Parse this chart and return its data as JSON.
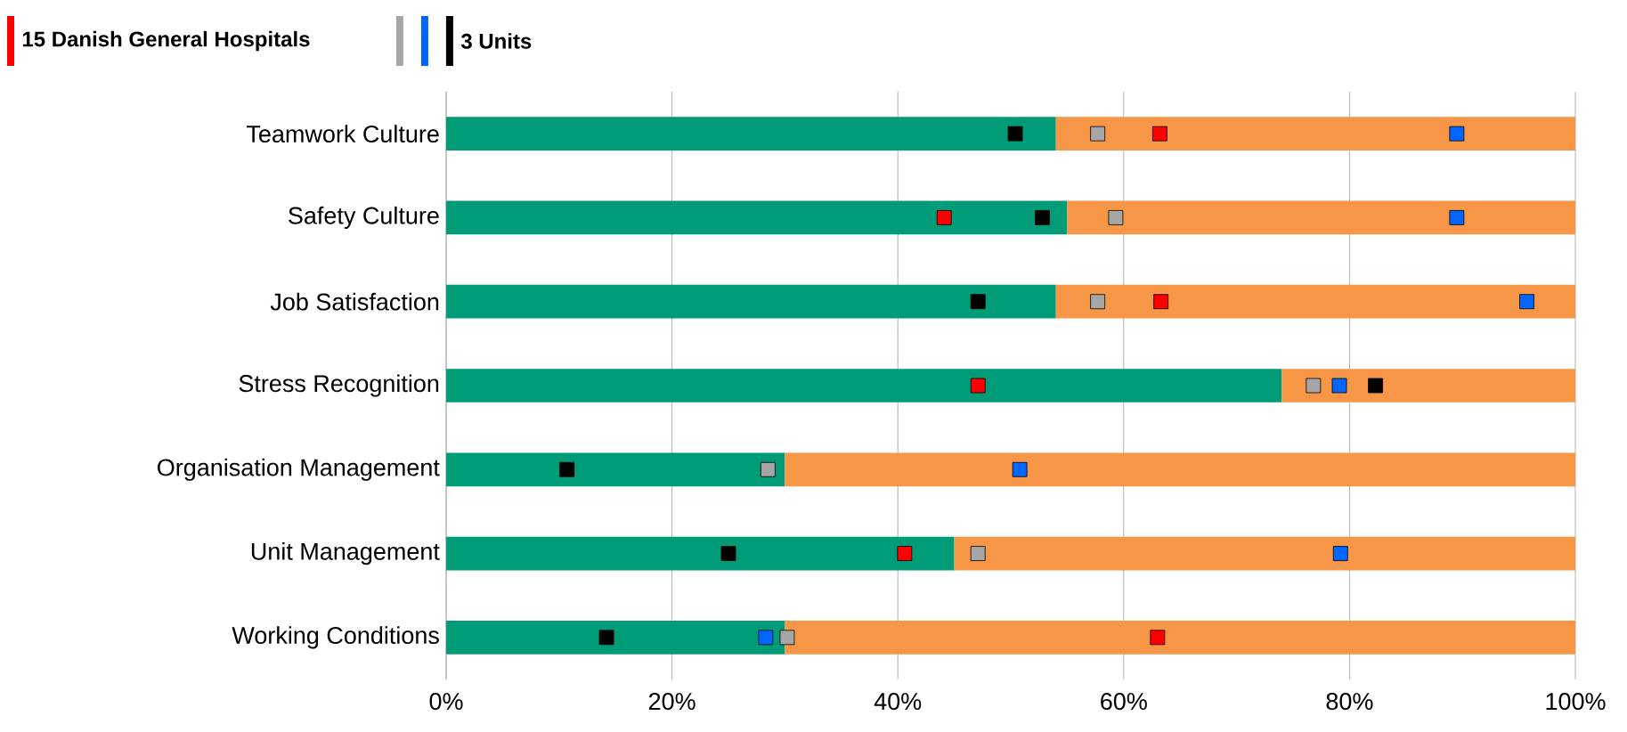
{
  "chart_data": {
    "type": "bar",
    "orientation": "horizontal",
    "stacked": true,
    "categories": [
      "Teamwork Culture",
      "Safety Culture",
      "Job Satisfaction",
      "Stress Recognition",
      "Organisation Management",
      "Unit Management",
      "Working Conditions"
    ],
    "series": [
      {
        "color": "#009b77",
        "values": [
          54,
          55,
          54,
          74,
          30,
          45,
          30
        ]
      },
      {
        "color": "#f79646",
        "values": [
          46,
          45,
          46,
          26,
          70,
          55,
          70
        ]
      },
      {
        "type": "scatter",
        "name": "15 Danish General Hospitals",
        "color": "#ff0000",
        "values": [
          63.2,
          44.1,
          63.3,
          47.1,
          null,
          40.6,
          63
        ]
      },
      {
        "type": "scatter",
        "color": "#a6a6a6",
        "values": [
          57.7,
          59.3,
          57.7,
          76.8,
          28.5,
          47.1,
          30.2
        ]
      },
      {
        "type": "scatter",
        "color": "#0066ff",
        "values": [
          89.5,
          89.5,
          95.7,
          79.1,
          50.8,
          79.2,
          28.3
        ]
      },
      {
        "type": "scatter",
        "name": "3 Units",
        "color": "#000000",
        "values": [
          50.4,
          52.8,
          47.1,
          82.3,
          10.7,
          25,
          14.2
        ]
      }
    ],
    "xlim": [
      0,
      100
    ],
    "xticks": [
      {
        "value": 0,
        "label": "0%"
      },
      {
        "value": 20,
        "label": "20%"
      },
      {
        "value": 40,
        "label": "40%"
      },
      {
        "value": 60,
        "label": "60%"
      },
      {
        "value": 80,
        "label": "80%"
      },
      {
        "value": 100,
        "label": "100%"
      }
    ],
    "grid": "x",
    "legend": "top left",
    "marker": "square"
  }
}
